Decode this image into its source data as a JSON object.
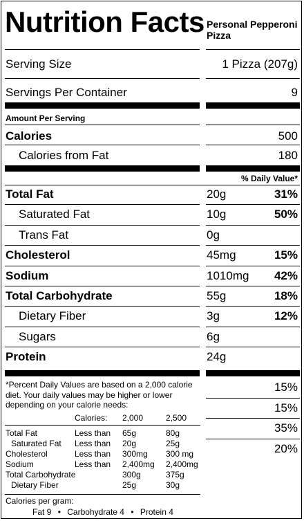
{
  "title": "Nutrition Facts",
  "product": "Personal Pepperoni Pizza",
  "serving_size_label": "Serving Size",
  "serving_size_value": "1 Pizza (207g)",
  "servings_label": "Servings Per Container",
  "servings_value": "9",
  "amount_per_serving": "Amount Per Serving",
  "calories_label": "Calories",
  "calories_value": "500",
  "calories_fat_label": "Calories from Fat",
  "calories_fat_value": "180",
  "dv_header": "% Daily Value*",
  "nutrients": [
    {
      "label": "Total Fat",
      "amount": "20g",
      "dv": "31%"
    },
    {
      "label": "Saturated Fat",
      "amount": "10g",
      "dv": "50%"
    },
    {
      "label": "Trans Fat",
      "amount": "0g",
      "dv": ""
    },
    {
      "label": "Cholesterol",
      "amount": "45mg",
      "dv": "15%"
    },
    {
      "label": "Sodium",
      "amount": "1010mg",
      "dv": "42%"
    },
    {
      "label": "Total Carbohydrate",
      "amount": "55g",
      "dv": "18%"
    },
    {
      "label": "Dietary Fiber",
      "amount": "3g",
      "dv": "12%"
    },
    {
      "label": "Sugars",
      "amount": "6g",
      "dv": ""
    },
    {
      "label": "Protein",
      "amount": "24g",
      "dv": ""
    }
  ],
  "vitamins": [
    "15%",
    "15%",
    "35%",
    "20%"
  ],
  "footnote": [
    "*Percent Daily Values are based on a 2,000 calorie",
    "diet. Your daily values may be higher or lower",
    "depending on your calorie needs:"
  ],
  "ref_header": {
    "label": "Calories:",
    "a": "2,000",
    "b": "2,500"
  },
  "ref_rows": [
    {
      "name": "Total Fat",
      "cmp": "Less than",
      "a": "65g",
      "b": "80g"
    },
    {
      "name": "Saturated Fat",
      "cmp": "Less than",
      "a": "20g",
      "b": "25g"
    },
    {
      "name": "Cholesterol",
      "cmp": "Less than",
      "a": "300mg",
      "b": "300 mg"
    },
    {
      "name": "Sodium",
      "cmp": "Less than",
      "a": "2,400mg",
      "b": "2,400mg"
    },
    {
      "name": "Total Carbohydrate",
      "cmp": "",
      "a": "300g",
      "b": "375g"
    },
    {
      "name": "Dietary Fiber",
      "cmp": "",
      "a": "25g",
      "b": "30g"
    }
  ],
  "per_gram_label": "Calories per gram:",
  "per_gram": {
    "fat": "Fat 9",
    "dot1": "•",
    "carb": "Carbohydrate 4",
    "dot2": "•",
    "protein": "Protein 4"
  }
}
